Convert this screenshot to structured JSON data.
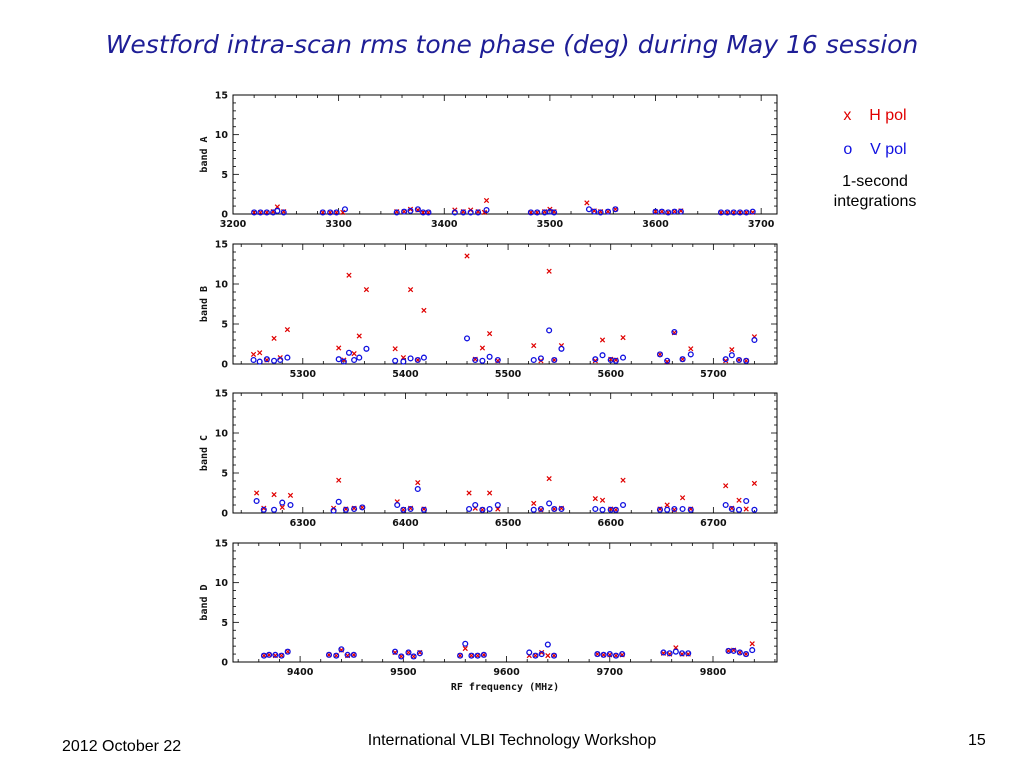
{
  "slide": {
    "title": "Westford intra-scan rms tone phase (deg) during May 16 session",
    "footer_date": "2012 October 22",
    "footer_center": "International VLBI Technology Workshop",
    "page_number": "15"
  },
  "legend": {
    "h_marker": "x",
    "h_label": "H pol",
    "v_marker": "o",
    "v_label": "V pol",
    "note_line1": "1-second",
    "note_line2": "integrations"
  },
  "colors": {
    "h_pol": "#e00000",
    "v_pol": "#1010e0",
    "title": "#1e1e96"
  },
  "chart_data": [
    {
      "type": "scatter",
      "ylabel": "band A",
      "xlabel": "",
      "xlim": [
        3200,
        3715
      ],
      "ylim": [
        0,
        15
      ],
      "xticks": [
        3200,
        3300,
        3400,
        3500,
        3600,
        3700
      ],
      "yticks": [
        0,
        5,
        10,
        15
      ],
      "series": [
        {
          "name": "H pol",
          "marker": "x",
          "x": [
            3220,
            3226,
            3232,
            3238,
            3242,
            3248,
            3285,
            3292,
            3298,
            3304,
            3355,
            3362,
            3368,
            3375,
            3380,
            3385,
            3410,
            3418,
            3425,
            3432,
            3438,
            3440,
            3482,
            3488,
            3495,
            3500,
            3504,
            3535,
            3542,
            3548,
            3555,
            3562,
            3600,
            3606,
            3612,
            3618,
            3624,
            3662,
            3668,
            3674,
            3680,
            3686,
            3692
          ],
          "y": [
            0.2,
            0.2,
            0.2,
            0.3,
            0.9,
            0.3,
            0.2,
            0.2,
            0.2,
            0.2,
            0.3,
            0.3,
            0.6,
            0.5,
            0.2,
            0.2,
            0.5,
            0.3,
            0.5,
            0.3,
            0.2,
            1.7,
            0.2,
            0.2,
            0.3,
            0.6,
            0.3,
            1.4,
            0.4,
            0.3,
            0.3,
            0.6,
            0.3,
            0.3,
            0.2,
            0.3,
            0.4,
            0.2,
            0.2,
            0.2,
            0.2,
            0.2,
            0.2
          ]
        },
        {
          "name": "V pol",
          "marker": "o",
          "x": [
            3220,
            3226,
            3232,
            3238,
            3242,
            3248,
            3285,
            3292,
            3298,
            3306,
            3355,
            3362,
            3368,
            3375,
            3380,
            3385,
            3410,
            3418,
            3425,
            3432,
            3440,
            3482,
            3488,
            3495,
            3500,
            3504,
            3537,
            3542,
            3548,
            3555,
            3562,
            3600,
            3606,
            3612,
            3618,
            3624,
            3662,
            3668,
            3674,
            3680,
            3686,
            3692
          ],
          "y": [
            0.2,
            0.2,
            0.2,
            0.2,
            0.4,
            0.2,
            0.2,
            0.2,
            0.2,
            0.6,
            0.2,
            0.3,
            0.4,
            0.6,
            0.2,
            0.2,
            0.2,
            0.2,
            0.2,
            0.2,
            0.5,
            0.2,
            0.2,
            0.2,
            0.3,
            0.2,
            0.6,
            0.3,
            0.2,
            0.3,
            0.6,
            0.3,
            0.3,
            0.2,
            0.3,
            0.3,
            0.2,
            0.2,
            0.2,
            0.2,
            0.2,
            0.3
          ]
        }
      ]
    },
    {
      "type": "scatter",
      "ylabel": "band B",
      "xlabel": "",
      "xlim": [
        5232,
        5762
      ],
      "ylim": [
        0,
        15
      ],
      "xticks": [
        5300,
        5400,
        5500,
        5600,
        5700
      ],
      "yticks": [
        0,
        5,
        10,
        15
      ],
      "series": [
        {
          "name": "H pol",
          "marker": "x",
          "x": [
            5252,
            5258,
            5265,
            5272,
            5278,
            5285,
            5335,
            5340,
            5345,
            5350,
            5355,
            5362,
            5390,
            5398,
            5405,
            5412,
            5418,
            5460,
            5468,
            5475,
            5482,
            5490,
            5525,
            5532,
            5540,
            5545,
            5552,
            5585,
            5592,
            5600,
            5605,
            5612,
            5648,
            5655,
            5662,
            5670,
            5678,
            5712,
            5718,
            5725,
            5732,
            5740
          ],
          "y": [
            1.2,
            1.4,
            0.5,
            3.2,
            0.8,
            4.3,
            2.0,
            0.5,
            11.1,
            1.3,
            3.5,
            9.3,
            1.9,
            0.8,
            9.3,
            0.5,
            6.7,
            13.5,
            0.6,
            2.0,
            3.8,
            0.4,
            2.3,
            0.4,
            11.6,
            0.5,
            2.3,
            0.4,
            3.0,
            0.6,
            0.5,
            3.3,
            1.2,
            0.3,
            3.9,
            0.6,
            1.9,
            0.4,
            1.8,
            0.5,
            0.4,
            3.4
          ]
        },
        {
          "name": "V pol",
          "marker": "o",
          "x": [
            5252,
            5258,
            5265,
            5272,
            5278,
            5285,
            5335,
            5340,
            5345,
            5350,
            5355,
            5362,
            5390,
            5398,
            5405,
            5412,
            5418,
            5460,
            5468,
            5475,
            5482,
            5490,
            5525,
            5532,
            5540,
            5545,
            5552,
            5585,
            5592,
            5600,
            5605,
            5612,
            5648,
            5655,
            5662,
            5670,
            5678,
            5712,
            5718,
            5725,
            5732,
            5740
          ],
          "y": [
            0.5,
            0.3,
            0.6,
            0.4,
            0.5,
            0.8,
            0.6,
            0.3,
            1.4,
            0.5,
            0.8,
            1.9,
            0.4,
            0.3,
            0.7,
            0.5,
            0.8,
            3.2,
            0.5,
            0.4,
            0.9,
            0.5,
            0.5,
            0.7,
            4.2,
            0.5,
            1.9,
            0.6,
            1.1,
            0.5,
            0.4,
            0.8,
            1.2,
            0.4,
            4.0,
            0.6,
            1.2,
            0.6,
            1.1,
            0.5,
            0.4,
            3.0
          ]
        }
      ]
    },
    {
      "type": "scatter",
      "ylabel": "band C",
      "xlabel": "",
      "xlim": [
        6232,
        6762
      ],
      "ylim": [
        0,
        15
      ],
      "xticks": [
        6300,
        6400,
        6500,
        6600,
        6700
      ],
      "yticks": [
        0,
        5,
        10,
        15
      ],
      "series": [
        {
          "name": "H pol",
          "marker": "x",
          "x": [
            6255,
            6262,
            6272,
            6280,
            6288,
            6330,
            6335,
            6342,
            6350,
            6358,
            6392,
            6398,
            6405,
            6412,
            6418,
            6462,
            6468,
            6475,
            6482,
            6490,
            6525,
            6532,
            6540,
            6545,
            6552,
            6585,
            6592,
            6600,
            6605,
            6612,
            6648,
            6655,
            6662,
            6670,
            6678,
            6712,
            6718,
            6725,
            6732,
            6740
          ],
          "y": [
            2.5,
            0.6,
            2.3,
            0.7,
            2.2,
            0.6,
            4.1,
            0.5,
            0.6,
            0.7,
            1.4,
            0.4,
            0.6,
            3.8,
            0.5,
            2.5,
            0.6,
            0.4,
            2.5,
            0.5,
            1.2,
            0.4,
            4.3,
            0.5,
            0.6,
            1.8,
            1.6,
            0.5,
            0.4,
            4.1,
            0.5,
            1.0,
            0.4,
            1.9,
            0.5,
            3.4,
            0.6,
            1.6,
            0.5,
            3.7
          ]
        },
        {
          "name": "V pol",
          "marker": "o",
          "x": [
            6255,
            6262,
            6272,
            6280,
            6288,
            6330,
            6335,
            6342,
            6350,
            6358,
            6392,
            6398,
            6405,
            6412,
            6418,
            6462,
            6468,
            6475,
            6482,
            6490,
            6525,
            6532,
            6540,
            6545,
            6552,
            6585,
            6592,
            6600,
            6605,
            6612,
            6648,
            6655,
            6662,
            6670,
            6678,
            6712,
            6718,
            6725,
            6732,
            6740
          ],
          "y": [
            1.5,
            0.4,
            0.4,
            1.3,
            1.0,
            0.3,
            1.4,
            0.4,
            0.5,
            0.7,
            1.0,
            0.4,
            0.5,
            3.0,
            0.4,
            0.5,
            1.0,
            0.4,
            0.5,
            1.0,
            0.4,
            0.5,
            1.2,
            0.5,
            0.5,
            0.5,
            0.4,
            0.4,
            0.4,
            1.0,
            0.4,
            0.4,
            0.5,
            0.5,
            0.4,
            1.0,
            0.5,
            0.4,
            1.5,
            0.4
          ]
        }
      ]
    },
    {
      "type": "scatter",
      "ylabel": "band D",
      "xlabel": "RF frequency (MHz)",
      "xlim": [
        9335,
        9862
      ],
      "ylim": [
        0,
        15
      ],
      "xticks": [
        9400,
        9500,
        9600,
        9700,
        9800
      ],
      "yticks": [
        0,
        5,
        10,
        15
      ],
      "series": [
        {
          "name": "H pol",
          "marker": "x",
          "x": [
            9365,
            9370,
            9376,
            9382,
            9388,
            9428,
            9435,
            9440,
            9446,
            9452,
            9492,
            9498,
            9505,
            9510,
            9516,
            9555,
            9560,
            9566,
            9572,
            9578,
            9622,
            9628,
            9634,
            9640,
            9646,
            9688,
            9694,
            9700,
            9706,
            9712,
            9752,
            9758,
            9764,
            9770,
            9776,
            9815,
            9820,
            9826,
            9832,
            9838
          ],
          "y": [
            0.8,
            0.9,
            0.8,
            0.8,
            1.3,
            0.9,
            0.8,
            1.5,
            0.8,
            0.9,
            1.2,
            0.7,
            1.2,
            0.7,
            1.2,
            0.8,
            1.7,
            0.8,
            0.8,
            0.9,
            0.8,
            0.8,
            1.2,
            0.8,
            0.8,
            1.0,
            0.9,
            0.9,
            0.8,
            0.9,
            1.1,
            1.0,
            1.8,
            1.0,
            1.0,
            1.4,
            1.5,
            1.2,
            1.0,
            2.3
          ]
        },
        {
          "name": "V pol",
          "marker": "o",
          "x": [
            9365,
            9370,
            9376,
            9382,
            9388,
            9428,
            9435,
            9440,
            9446,
            9452,
            9492,
            9498,
            9505,
            9510,
            9516,
            9555,
            9560,
            9566,
            9572,
            9578,
            9622,
            9628,
            9634,
            9640,
            9646,
            9688,
            9694,
            9700,
            9706,
            9712,
            9752,
            9758,
            9764,
            9770,
            9776,
            9815,
            9820,
            9826,
            9832,
            9838
          ],
          "y": [
            0.8,
            0.9,
            0.9,
            0.8,
            1.3,
            0.9,
            0.8,
            1.6,
            0.9,
            0.9,
            1.3,
            0.7,
            1.2,
            0.7,
            1.1,
            0.8,
            2.3,
            0.8,
            0.8,
            0.9,
            1.2,
            0.8,
            1.0,
            2.2,
            0.8,
            1.0,
            0.9,
            1.0,
            0.8,
            1.0,
            1.2,
            1.1,
            1.3,
            1.1,
            1.1,
            1.4,
            1.4,
            1.2,
            1.0,
            1.5
          ]
        }
      ]
    }
  ]
}
